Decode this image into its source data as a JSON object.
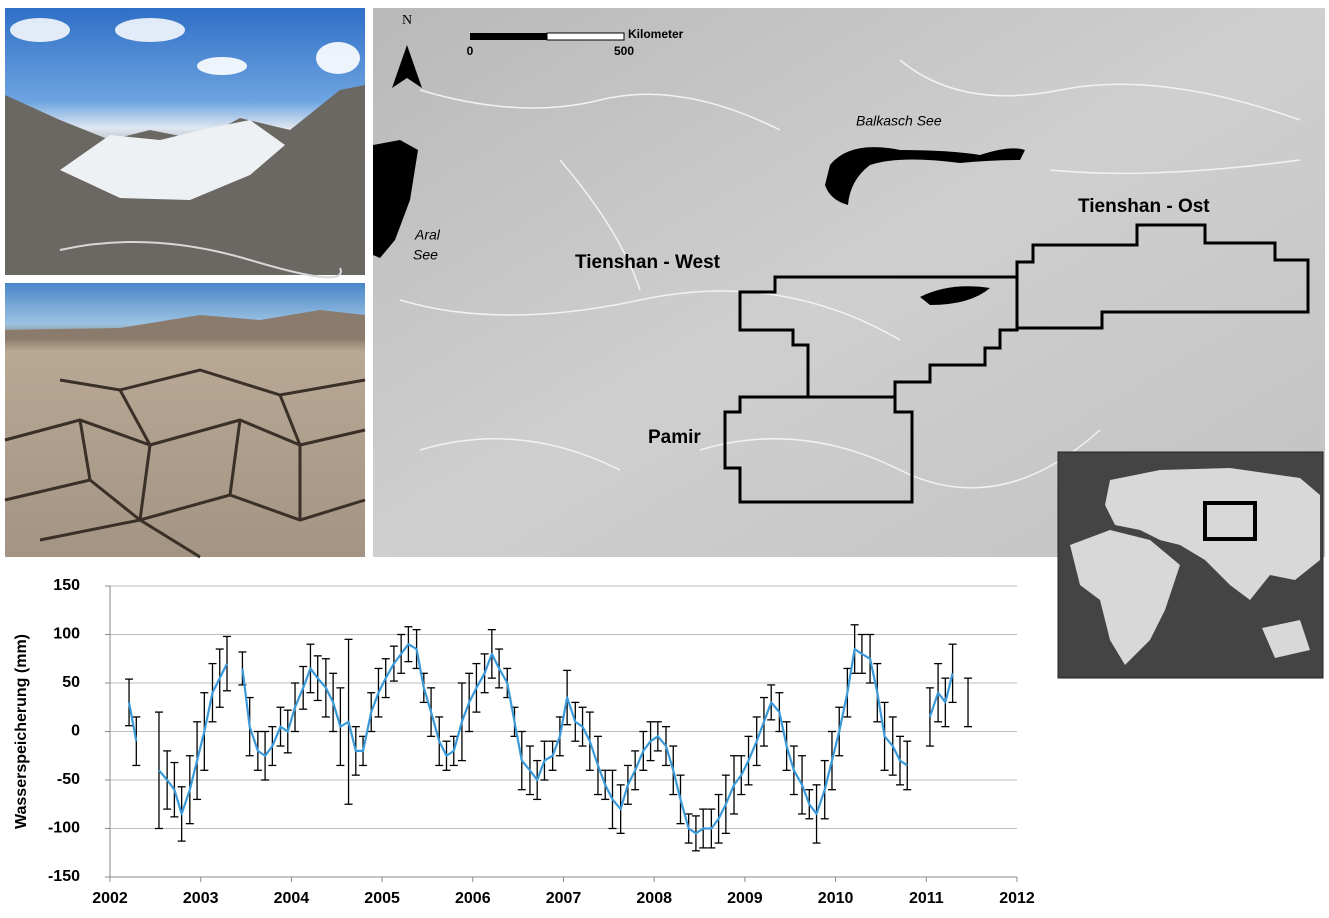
{
  "map": {
    "north": "N",
    "scale_start": "0",
    "scale_end": "500",
    "scale_unit": "Kilometer",
    "labels": [
      "Balkasch See",
      "Aral",
      "See",
      "Tienshan - West",
      "Tienshan - Ost",
      "Pamir"
    ]
  },
  "chart_data": {
    "type": "line",
    "y_label": "Wasserspeicherung (mm)",
    "color": "#3a9ad9",
    "error_color": "#000000",
    "grid": true,
    "xlim": [
      2002,
      2012
    ],
    "xticks": [
      2002,
      2003,
      2004,
      2005,
      2006,
      2007,
      2008,
      2009,
      2010,
      2011,
      2012
    ],
    "ylim": [
      -150,
      150
    ],
    "yticks": [
      -150,
      -100,
      -50,
      0,
      50,
      100,
      150
    ],
    "x": [
      2002.21,
      2002.29,
      2002.38,
      2002.46,
      2002.54,
      2002.63,
      2002.71,
      2002.79,
      2002.88,
      2002.96,
      2003.04,
      2003.13,
      2003.21,
      2003.29,
      2003.38,
      2003.46,
      2003.54,
      2003.63,
      2003.71,
      2003.79,
      2003.88,
      2003.96,
      2004.04,
      2004.13,
      2004.21,
      2004.29,
      2004.38,
      2004.46,
      2004.54,
      2004.63,
      2004.71,
      2004.79,
      2004.88,
      2004.96,
      2005.04,
      2005.13,
      2005.21,
      2005.29,
      2005.38,
      2005.46,
      2005.54,
      2005.63,
      2005.71,
      2005.79,
      2005.88,
      2005.96,
      2006.04,
      2006.13,
      2006.21,
      2006.29,
      2006.38,
      2006.46,
      2006.54,
      2006.63,
      2006.71,
      2006.79,
      2006.88,
      2006.96,
      2007.04,
      2007.13,
      2007.21,
      2007.29,
      2007.38,
      2007.46,
      2007.54,
      2007.63,
      2007.71,
      2007.79,
      2007.88,
      2007.96,
      2008.04,
      2008.13,
      2008.21,
      2008.29,
      2008.38,
      2008.46,
      2008.54,
      2008.63,
      2008.71,
      2008.79,
      2008.88,
      2008.96,
      2009.04,
      2009.13,
      2009.21,
      2009.29,
      2009.38,
      2009.46,
      2009.54,
      2009.63,
      2009.71,
      2009.79,
      2009.88,
      2009.96,
      2010.04,
      2010.13,
      2010.21,
      2010.29,
      2010.38,
      2010.46,
      2010.54,
      2010.63,
      2010.71,
      2010.79,
      2010.88,
      2010.96,
      2011.04,
      2011.13,
      2011.21,
      2011.29,
      2011.38,
      2011.46
    ],
    "values": [
      30,
      -10,
      null,
      null,
      -40,
      -50,
      -60,
      -85,
      -60,
      -30,
      0,
      40,
      55,
      70,
      null,
      65,
      5,
      -20,
      -25,
      -15,
      5,
      0,
      25,
      45,
      65,
      55,
      45,
      30,
      5,
      10,
      -20,
      -20,
      20,
      40,
      55,
      70,
      80,
      90,
      85,
      45,
      20,
      -10,
      -25,
      -20,
      10,
      30,
      45,
      60,
      80,
      65,
      50,
      10,
      -30,
      -40,
      -50,
      -30,
      -25,
      -5,
      35,
      10,
      5,
      -10,
      -35,
      -55,
      -70,
      -80,
      -55,
      -40,
      -20,
      -10,
      -5,
      -15,
      -40,
      -70,
      -100,
      -105,
      -100,
      -100,
      -90,
      -75,
      -55,
      -45,
      -30,
      -10,
      10,
      30,
      20,
      -15,
      -40,
      -55,
      -75,
      -85,
      -60,
      -30,
      0,
      40,
      85,
      80,
      75,
      40,
      -5,
      -15,
      -30,
      -35,
      null,
      null,
      15,
      40,
      30,
      60,
      null,
      30
    ],
    "errors": [
      24,
      25,
      null,
      null,
      60,
      30,
      28,
      28,
      35,
      40,
      40,
      30,
      30,
      28,
      null,
      17,
      30,
      20,
      25,
      20,
      20,
      22,
      25,
      22,
      25,
      23,
      30,
      30,
      40,
      85,
      25,
      15,
      20,
      25,
      20,
      18,
      20,
      18,
      20,
      15,
      25,
      25,
      15,
      15,
      40,
      30,
      25,
      20,
      25,
      20,
      15,
      15,
      30,
      25,
      20,
      20,
      15,
      20,
      28,
      20,
      20,
      30,
      30,
      15,
      30,
      25,
      20,
      20,
      20,
      20,
      15,
      20,
      25,
      25,
      15,
      18,
      20,
      20,
      25,
      30,
      30,
      20,
      25,
      25,
      25,
      18,
      20,
      25,
      25,
      30,
      15,
      30,
      30,
      30,
      25,
      25,
      25,
      20,
      25,
      30,
      35,
      30,
      25,
      25,
      null,
      null,
      30,
      30,
      25,
      30,
      null,
      25
    ]
  }
}
